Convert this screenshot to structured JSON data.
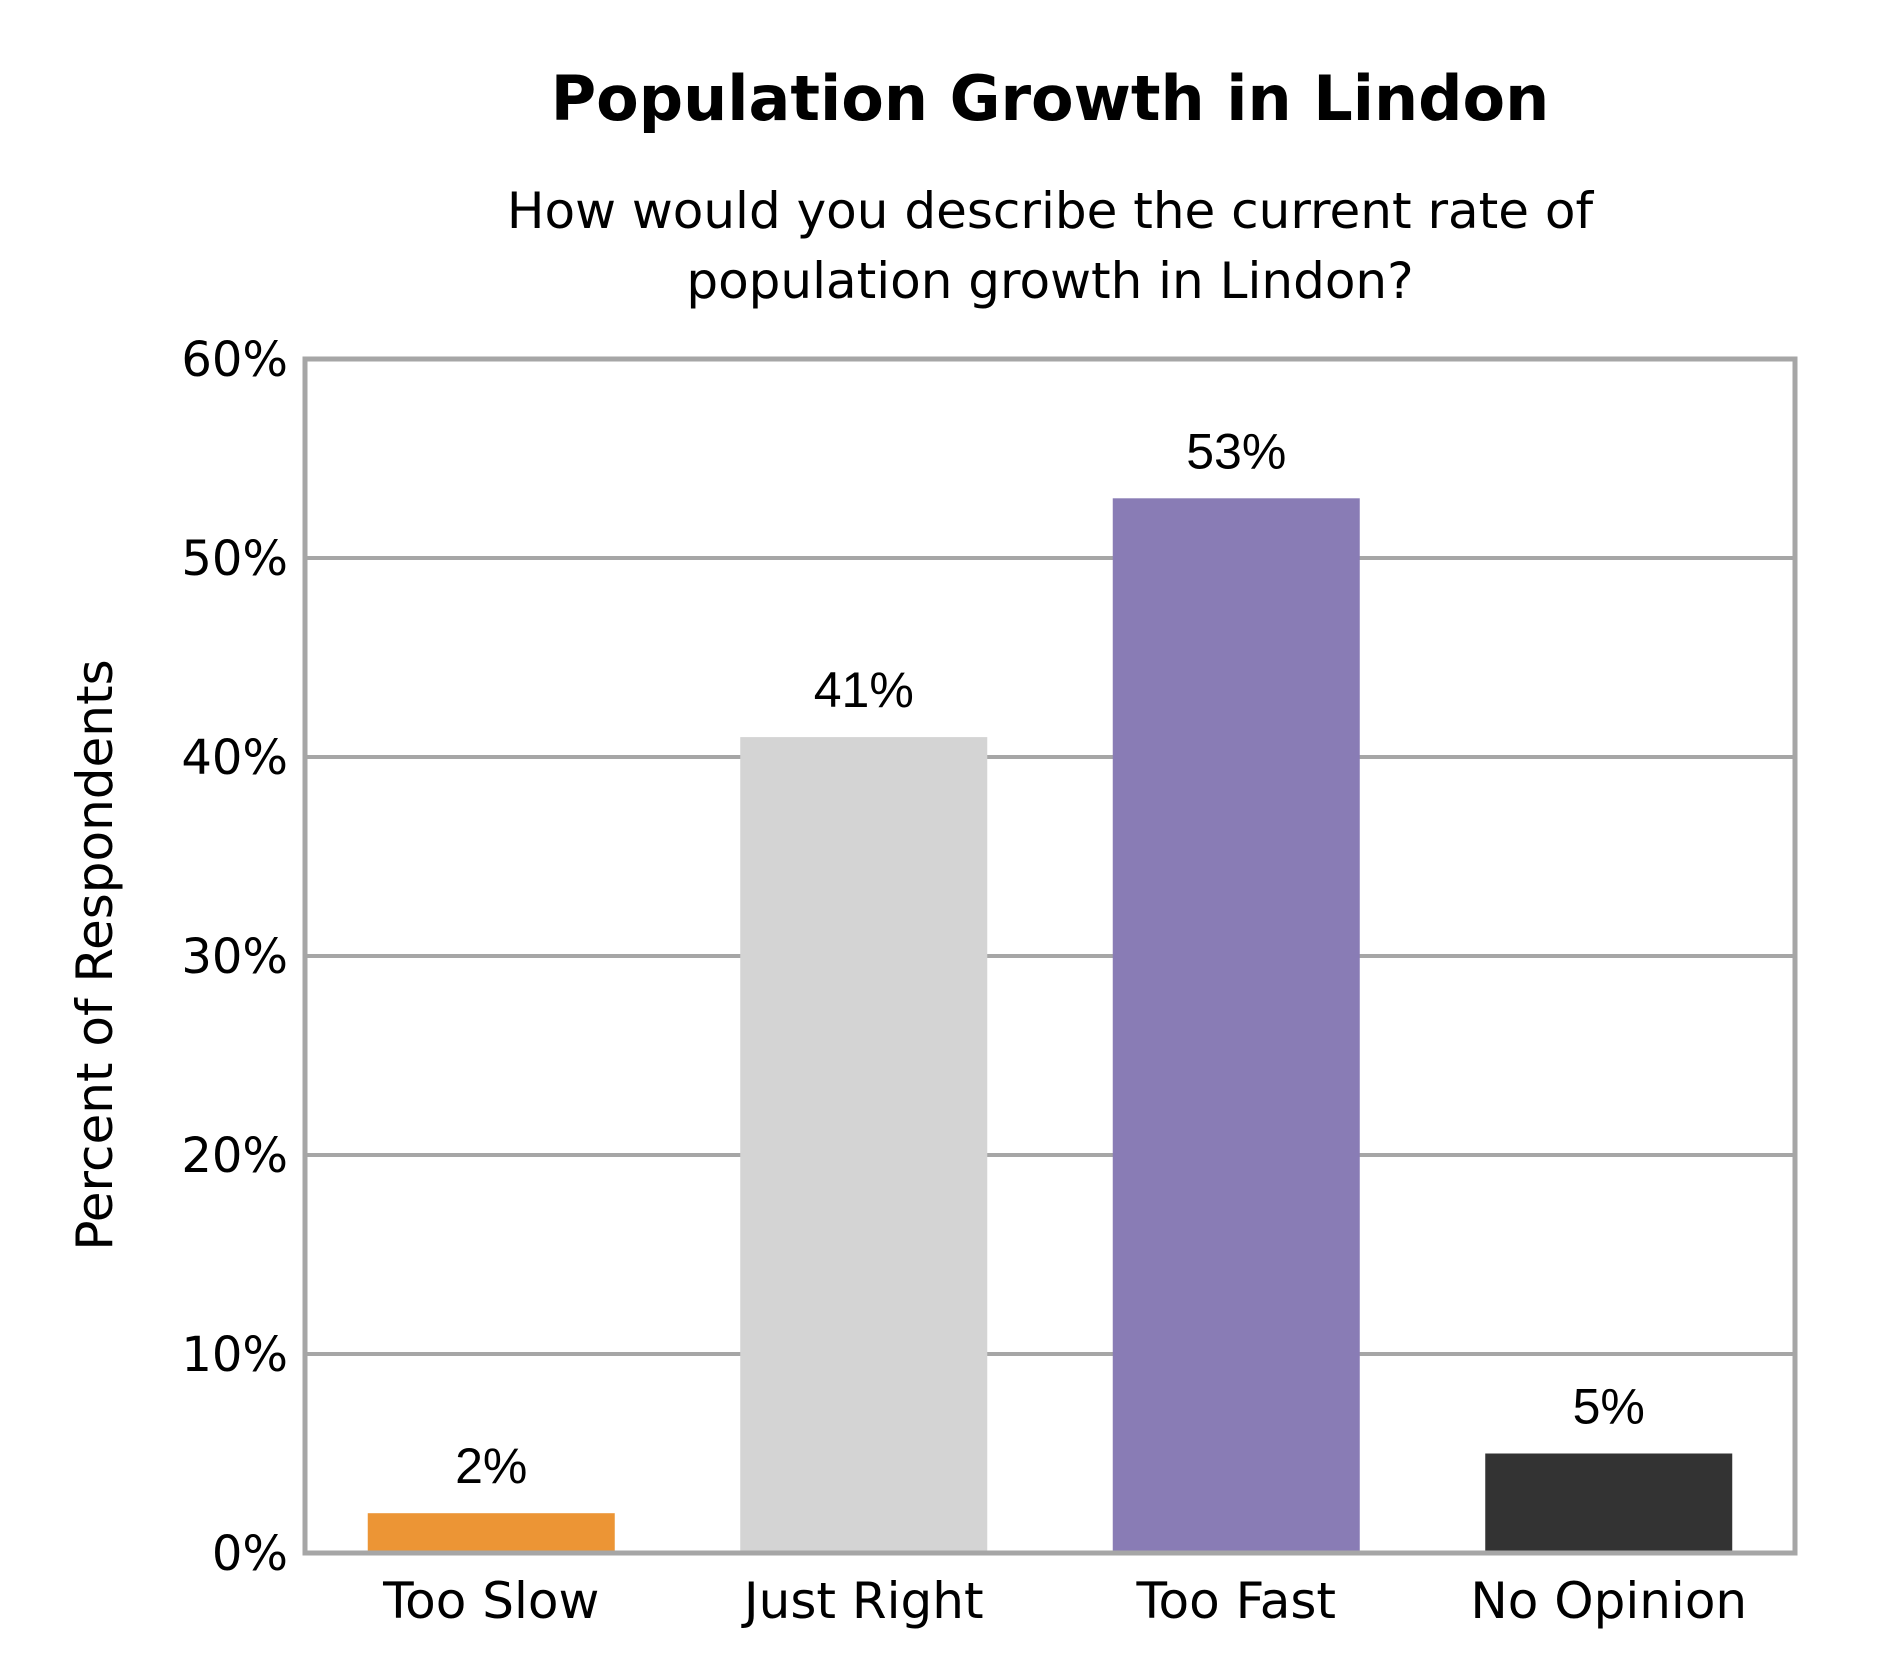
{
  "chart_data": {
    "type": "bar",
    "title": "Population Growth in Lindon",
    "subtitle_lines": [
      "How would you describe the current rate of",
      "population growth in Lindon?"
    ],
    "xlabel": "",
    "ylabel": "Percent of Respondents",
    "categories": [
      "Too Slow",
      "Just Right",
      "Too Fast",
      "No Opinion"
    ],
    "values": [
      2,
      41,
      53,
      5
    ],
    "data_labels": [
      "2%",
      "41%",
      "53%",
      "5%"
    ],
    "colors": [
      "#ec9535",
      "#d4d4d4",
      "#897cb5",
      "#333333"
    ],
    "ylim": [
      0,
      60
    ],
    "yticks": [
      0,
      10,
      20,
      30,
      40,
      50,
      60
    ],
    "ytick_labels": [
      "0%",
      "10%",
      "20%",
      "30%",
      "40%",
      "50%",
      "60%"
    ],
    "grid": true,
    "legend": "none"
  }
}
